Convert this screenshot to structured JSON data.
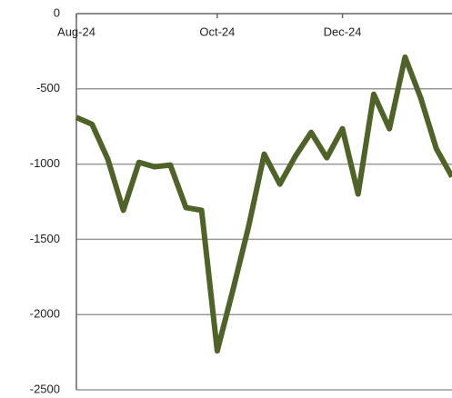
{
  "chart_data": {
    "type": "line",
    "categories": [
      "Aug-24",
      null,
      null,
      null,
      null,
      null,
      null,
      null,
      null,
      "Oct-24",
      null,
      null,
      null,
      null,
      null,
      null,
      null,
      "Dec-24",
      null,
      null,
      null,
      null,
      null,
      null,
      null
    ],
    "series": [
      {
        "color": "#4f6228",
        "values": [
          -690,
          -735,
          -965,
          -1307,
          -988,
          -1018,
          -1006,
          -1289,
          -1307,
          -2241,
          -1837,
          -1416,
          -934,
          -1133,
          -946,
          -789,
          -958,
          -765,
          -1199,
          -536,
          -765,
          -289,
          -560,
          -898,
          -1084
        ]
      }
    ],
    "ylim": [
      -2500,
      0
    ],
    "yticks": [
      0,
      -500,
      -1000,
      -1500,
      -2000,
      -2500
    ],
    "grid": true
  }
}
